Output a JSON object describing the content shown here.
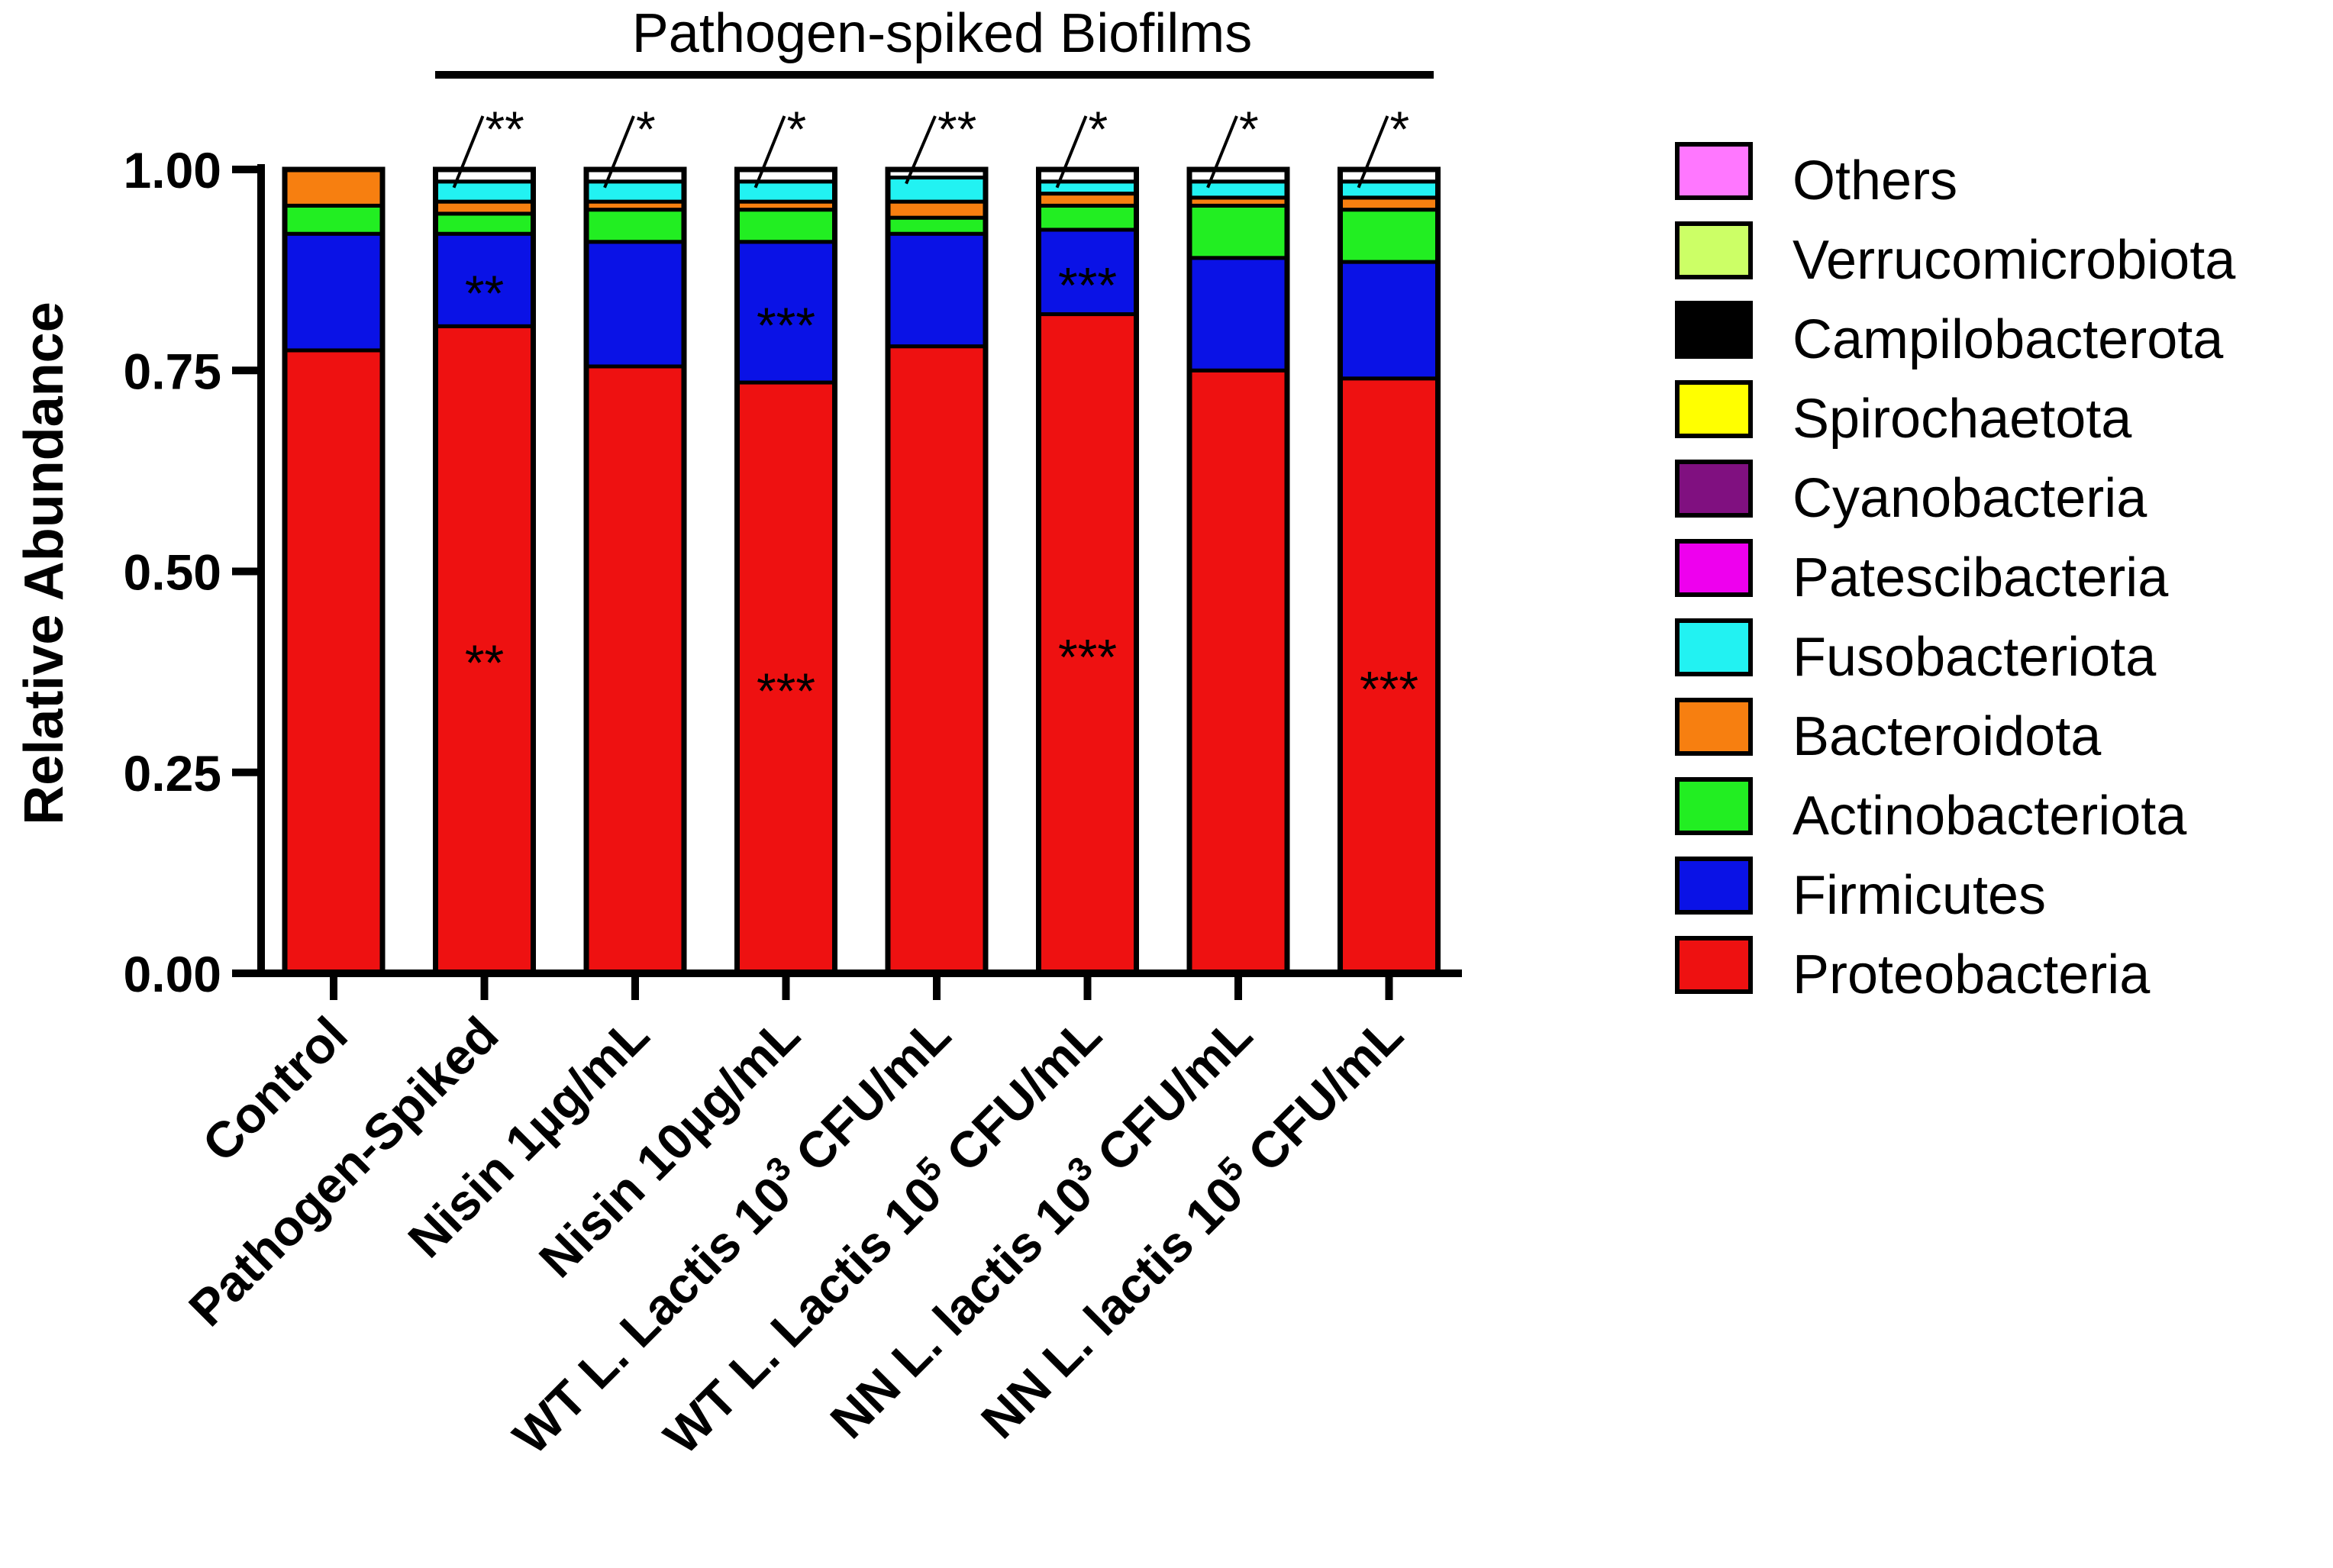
{
  "chart_data": {
    "type": "stacked-bar",
    "ylabel": "Relative Abundance",
    "ylim": [
      0,
      1
    ],
    "yticks": [
      "0.00",
      "0.25",
      "0.50",
      "0.75",
      "1.00"
    ],
    "group_label": "Pathogen-spiked Biofilms",
    "categories": [
      {
        "label": "Control"
      },
      {
        "label": "Pathogen-Spiked"
      },
      {
        "label": "Nisin 1µg/mL"
      },
      {
        "label": "Nisin 10µg/mL"
      },
      {
        "label": "WT L. Lactis 10",
        "sup": "3",
        "suffix": " CFU/mL"
      },
      {
        "label": "WT L. Lactis 10",
        "sup": "5",
        "suffix": " CFU/mL"
      },
      {
        "label": "NN L. lactis 10",
        "sup": "3",
        "suffix": " CFU/mL"
      },
      {
        "label": "NN L. lactis 10",
        "sup": "5",
        "suffix": " CFU/mL"
      }
    ],
    "series": [
      {
        "name": "Proteobacteria",
        "color": "#ee1111",
        "values": [
          0.775,
          0.805,
          0.755,
          0.735,
          0.78,
          0.82,
          0.75,
          0.74
        ]
      },
      {
        "name": "Firmicutes",
        "color": "#0a12e6",
        "values": [
          0.145,
          0.115,
          0.155,
          0.175,
          0.14,
          0.105,
          0.14,
          0.145
        ]
      },
      {
        "name": "Actinobacteriota",
        "color": "#22ee22",
        "values": [
          0.035,
          0.025,
          0.04,
          0.04,
          0.02,
          0.03,
          0.065,
          0.065
        ]
      },
      {
        "name": "Bacteroidota",
        "color": "#f77f10",
        "values": [
          0.045,
          0.015,
          0.01,
          0.01,
          0.02,
          0.015,
          0.01,
          0.015
        ]
      },
      {
        "name": "Fusobacteriota",
        "color": "#22f2f2",
        "values": [
          0.0,
          0.025,
          0.025,
          0.025,
          0.03,
          0.015,
          0.02,
          0.02
        ]
      },
      {
        "name": "Patescibacteria",
        "color": "#ee00ee",
        "values": [
          0,
          0,
          0,
          0,
          0,
          0,
          0,
          0
        ]
      },
      {
        "name": "Cyanobacteria",
        "color": "#801080",
        "values": [
          0,
          0,
          0,
          0,
          0,
          0,
          0,
          0
        ]
      },
      {
        "name": "Spirochaetota",
        "color": "#ffff00",
        "values": [
          0,
          0,
          0,
          0,
          0,
          0,
          0,
          0
        ]
      },
      {
        "name": "Campilobacterota",
        "color": "#000000",
        "values": [
          0,
          0,
          0,
          0,
          0,
          0,
          0,
          0
        ]
      },
      {
        "name": "Verrucomicrobiota",
        "color": "#ccff66",
        "values": [
          0,
          0,
          0,
          0,
          0,
          0,
          0,
          0
        ]
      },
      {
        "name": "Others",
        "color": "#ff77ff",
        "values": [
          0,
          0,
          0,
          0,
          0,
          0,
          0,
          0
        ]
      }
    ],
    "legend_order": [
      "Others",
      "Verrucomicrobiota",
      "Campilobacterota",
      "Spirochaetota",
      "Cyanobacteria",
      "Patescibacteria",
      "Fusobacteriota",
      "Bacteroidota",
      "Actinobacteriota",
      "Firmicutes",
      "Proteobacteria"
    ],
    "annotations": [
      {
        "bar": 1,
        "series": "Proteobacteria",
        "text": "**"
      },
      {
        "bar": 1,
        "series": "Firmicutes",
        "text": "**"
      },
      {
        "bar": 1,
        "series": "Fusobacteriota",
        "text": "**",
        "leader": true
      },
      {
        "bar": 2,
        "series": "Fusobacteriota",
        "text": "*",
        "leader": true
      },
      {
        "bar": 3,
        "series": "Proteobacteria",
        "text": "***"
      },
      {
        "bar": 3,
        "series": "Firmicutes",
        "text": "***"
      },
      {
        "bar": 3,
        "series": "Fusobacteriota",
        "text": "*",
        "leader": true
      },
      {
        "bar": 4,
        "series": "Fusobacteriota",
        "text": "**",
        "leader": true
      },
      {
        "bar": 5,
        "series": "Proteobacteria",
        "text": "***"
      },
      {
        "bar": 5,
        "series": "Firmicutes",
        "text": "***"
      },
      {
        "bar": 5,
        "series": "Fusobacteriota",
        "text": "*",
        "leader": true
      },
      {
        "bar": 6,
        "series": "Fusobacteriota",
        "text": "*",
        "leader": true
      },
      {
        "bar": 7,
        "series": "Proteobacteria",
        "text": "***"
      },
      {
        "bar": 7,
        "series": "Fusobacteriota",
        "text": "*",
        "leader": true
      }
    ]
  }
}
